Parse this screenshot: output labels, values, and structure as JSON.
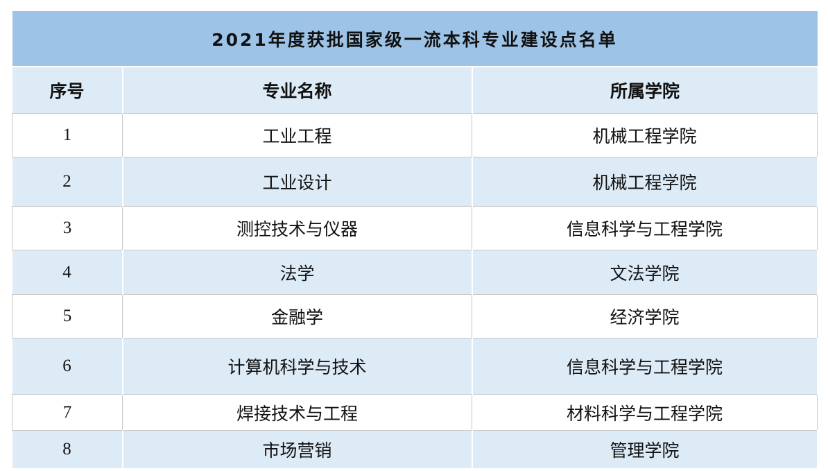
{
  "title": "2021年度获批国家级一流本科专业建设点名单",
  "headers": [
    "序号",
    "专业名称",
    "所属学院"
  ],
  "rows": [
    [
      "1",
      "工业工程",
      "机械工程学院"
    ],
    [
      "2",
      "工业设计",
      "机械工程学院"
    ],
    [
      "3",
      "测控技术与仪器",
      "信息科学与工程学院"
    ],
    [
      "4",
      "法学",
      "文法学院"
    ],
    [
      "5",
      "金融学",
      "经济学院"
    ],
    [
      "6",
      "计算机科学与技术",
      "信息科学与工程学院"
    ],
    [
      "7",
      "焊接技术与工程",
      "材料科学与工程学院"
    ],
    [
      "8",
      "市场营销",
      "管理学院"
    ]
  ],
  "colors": {
    "title_bg": "#9dc3e6",
    "band_bg": "#ddebf7"
  }
}
